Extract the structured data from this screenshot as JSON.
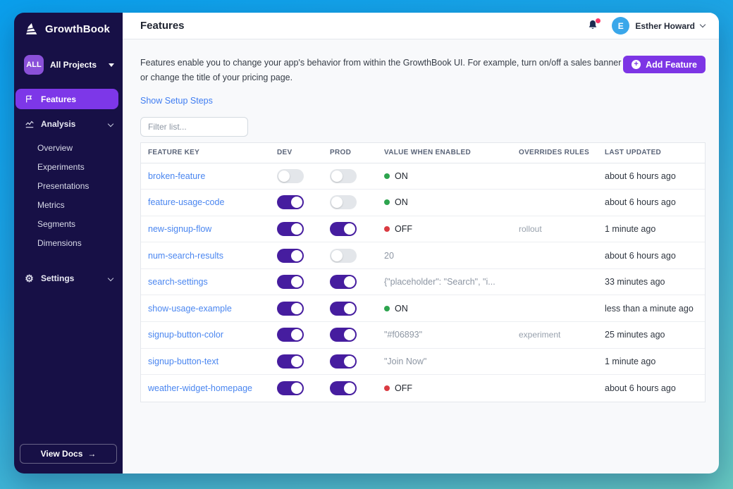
{
  "app": {
    "name": "GrowthBook"
  },
  "sidebar": {
    "project_badge": "ALL",
    "project_label": "All Projects",
    "features_label": "Features",
    "analysis_label": "Analysis",
    "analysis_children": [
      "Overview",
      "Experiments",
      "Presentations",
      "Metrics",
      "Segments",
      "Dimensions"
    ],
    "settings_label": "Settings",
    "view_docs_label": "View Docs",
    "view_docs_arrow": "→"
  },
  "header": {
    "title": "Features",
    "user_initial": "E",
    "user_name": "Esther Howard"
  },
  "main": {
    "description": "Features enable you to change your app's behavior from within the GrowthBook UI. For example, turn on/off a sales banner or change the title of your pricing page.",
    "add_feature_label": "Add Feature",
    "setup_link": "Show Setup Steps",
    "filter_placeholder": "Filter list..."
  },
  "table": {
    "columns": [
      "FEATURE KEY",
      "DEV",
      "PROD",
      "VALUE WHEN ENABLED",
      "OVERRIDES RULES",
      "LAST UPDATED"
    ],
    "rows": [
      {
        "key": "broken-feature",
        "dev": false,
        "prod": false,
        "value": "ON",
        "dot": "green",
        "overrides": "",
        "updated": "about 6 hours ago"
      },
      {
        "key": "feature-usage-code",
        "dev": true,
        "prod": false,
        "value": "ON",
        "dot": "green",
        "overrides": "",
        "updated": "about 6 hours ago"
      },
      {
        "key": "new-signup-flow",
        "dev": true,
        "prod": true,
        "value": "OFF",
        "dot": "red",
        "overrides": "rollout",
        "updated": "1 minute ago"
      },
      {
        "key": "num-search-results",
        "dev": true,
        "prod": false,
        "value": "20",
        "dot": null,
        "overrides": "",
        "updated": "about 6 hours ago"
      },
      {
        "key": "search-settings",
        "dev": true,
        "prod": true,
        "value": "{\"placeholder\": \"Search\", \"i...",
        "dot": null,
        "overrides": "",
        "updated": "33 minutes ago"
      },
      {
        "key": "show-usage-example",
        "dev": true,
        "prod": true,
        "value": "ON",
        "dot": "green",
        "overrides": "",
        "updated": "less than a minute ago"
      },
      {
        "key": "signup-button-color",
        "dev": true,
        "prod": true,
        "value": "\"#f06893\"",
        "dot": null,
        "overrides": "experiment",
        "updated": "25 minutes ago"
      },
      {
        "key": "signup-button-text",
        "dev": true,
        "prod": true,
        "value": "\"Join Now\"",
        "dot": null,
        "overrides": "",
        "updated": "1 minute ago"
      },
      {
        "key": "weather-widget-homepage",
        "dev": true,
        "prod": true,
        "value": "OFF",
        "dot": "red",
        "overrides": "",
        "updated": "about 6 hours ago"
      }
    ]
  },
  "colors": {
    "sidebar_bg": "#171046",
    "accent_purple": "#7d37e8",
    "project_badge_purple": "#8a50d9",
    "toggle_on_purple": "#461d9f",
    "toggle_off_gray": "#e3e6ea",
    "link_blue": "#3f7df2",
    "feature_key_blue": "#4a86f0",
    "dot_green": "#2da44e",
    "dot_red": "#da3b42",
    "avatar_blue": "#3aa7ea",
    "notification_red": "#fb3767",
    "background_gradient_start": "#0a9fec",
    "background_gradient_end": "#67c8c0"
  }
}
